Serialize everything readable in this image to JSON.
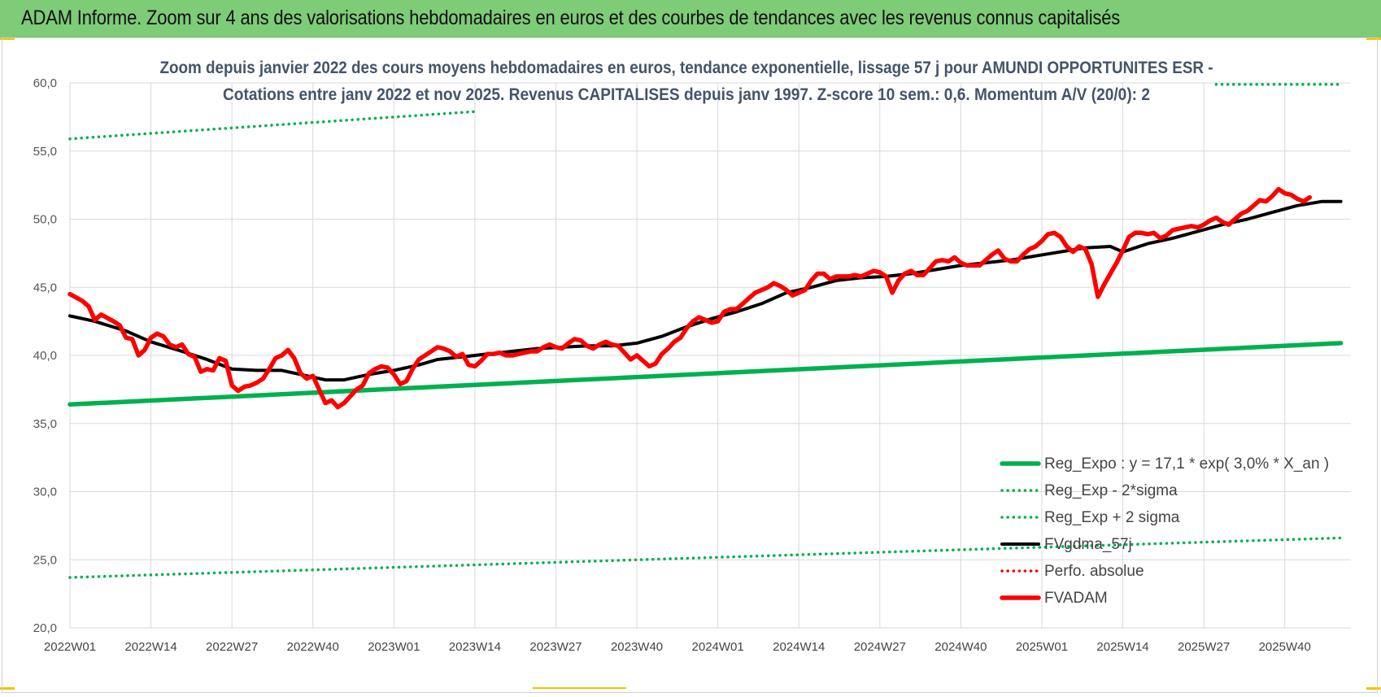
{
  "header": {
    "title": "ADAM Informe. Zoom sur 4 ans des valorisations hebdomadaires en euros et des courbes de tendances avec les revenus connus capitalisés"
  },
  "colors": {
    "header_bg": "#7ecb78",
    "trend": "#00b050",
    "price": "#ff0000",
    "smoothing": "#000000",
    "grid": "#d9d9d9",
    "title_text": "#44546a"
  },
  "chart_data": {
    "type": "line",
    "title_lines": [
      "Zoom depuis janvier 2022 des cours moyens hebdomadaires en euros, tendance exponentielle, lissage 57 j pour AMUNDI OPPORTUNITES ESR -",
      "Cotations entre janv 2022 et nov 2025. Revenus CAPITALISES depuis janv 1997. Z-score 10 sem.: 0,6. Momentum A/V (20/0): 2"
    ],
    "ylim": [
      20,
      60
    ],
    "y_ticks": [
      "20,0",
      "25,0",
      "30,0",
      "35,0",
      "40,0",
      "45,0",
      "50,0",
      "55,0",
      "60,0"
    ],
    "x_ticks": [
      "2022W01",
      "2022W14",
      "2022W27",
      "2022W40",
      "2023W01",
      "2023W14",
      "2023W27",
      "2023W40",
      "2024W01",
      "2024W14",
      "2024W27",
      "2024W40",
      "2025W01",
      "2025W14",
      "2025W27",
      "2025W40"
    ],
    "x_unit_weeks_per_tick": 13,
    "series": [
      {
        "name": "Reg_Expo : y = 17,1 * exp( 3,0% *  X_an )",
        "style": "solid-thick",
        "color": "#00b050",
        "points": [
          [
            0,
            36.4
          ],
          [
            204,
            40.9
          ]
        ]
      },
      {
        "name": "Reg_Exp - 2*sigma",
        "style": "dotted",
        "color": "#00b050",
        "points": [
          [
            0,
            23.7
          ],
          [
            204,
            26.6
          ]
        ]
      },
      {
        "name": "Reg_Exp + 2 sigma",
        "style": "dotted",
        "color": "#00b050",
        "points": [
          [
            0,
            55.9
          ],
          [
            65,
            57.9
          ]
        ],
        "points_2": [
          [
            184,
            59.9
          ],
          [
            204,
            59.9
          ]
        ]
      },
      {
        "name": "FVgdma_57j",
        "style": "solid",
        "color": "#000000",
        "points": [
          [
            0,
            42.9
          ],
          [
            4,
            42.5
          ],
          [
            9,
            41.8
          ],
          [
            13,
            41.0
          ],
          [
            18,
            40.3
          ],
          [
            22,
            39.7
          ],
          [
            26,
            39.0
          ],
          [
            30,
            38.9
          ],
          [
            34,
            38.9
          ],
          [
            38,
            38.5
          ],
          [
            41,
            38.2
          ],
          [
            44,
            38.2
          ],
          [
            48,
            38.6
          ],
          [
            52,
            38.9
          ],
          [
            56,
            39.3
          ],
          [
            59,
            39.7
          ],
          [
            63,
            39.9
          ],
          [
            67,
            40.1
          ],
          [
            71,
            40.3
          ],
          [
            75,
            40.5
          ],
          [
            79,
            40.6
          ],
          [
            83,
            40.7
          ],
          [
            87,
            40.7
          ],
          [
            91,
            40.9
          ],
          [
            95,
            41.4
          ],
          [
            99,
            42.1
          ],
          [
            103,
            42.7
          ],
          [
            107,
            43.2
          ],
          [
            111,
            43.8
          ],
          [
            115,
            44.6
          ],
          [
            119,
            45.0
          ],
          [
            123,
            45.5
          ],
          [
            127,
            45.7
          ],
          [
            131,
            45.8
          ],
          [
            135,
            46.0
          ],
          [
            139,
            46.3
          ],
          [
            143,
            46.6
          ],
          [
            147,
            46.8
          ],
          [
            151,
            47.0
          ],
          [
            155,
            47.3
          ],
          [
            159,
            47.6
          ],
          [
            163,
            47.9
          ],
          [
            167,
            48.0
          ],
          [
            169,
            47.6
          ],
          [
            173,
            48.2
          ],
          [
            177,
            48.6
          ],
          [
            181,
            49.1
          ],
          [
            185,
            49.6
          ],
          [
            189,
            50.0
          ],
          [
            193,
            50.5
          ],
          [
            197,
            51.0
          ],
          [
            201,
            51.3
          ],
          [
            204,
            51.3
          ]
        ]
      },
      {
        "name": "Perfo. absolue",
        "style": "dotted",
        "color": "#ff0000",
        "points": []
      },
      {
        "name": "FVADAM",
        "style": "solid-thick",
        "color": "#ff0000",
        "points": [
          [
            0,
            44.5
          ],
          [
            2,
            44.0
          ],
          [
            3,
            43.6
          ],
          [
            4,
            42.6
          ],
          [
            5,
            43.0
          ],
          [
            7,
            42.5
          ],
          [
            8,
            42.2
          ],
          [
            9,
            41.3
          ],
          [
            10,
            41.2
          ],
          [
            11,
            40.0
          ],
          [
            12,
            40.4
          ],
          [
            13,
            41.3
          ],
          [
            14,
            41.6
          ],
          [
            15,
            41.4
          ],
          [
            16,
            40.8
          ],
          [
            17,
            40.6
          ],
          [
            18,
            40.8
          ],
          [
            19,
            40.1
          ],
          [
            20,
            39.9
          ],
          [
            21,
            38.8
          ],
          [
            22,
            39.0
          ],
          [
            23,
            38.9
          ],
          [
            24,
            39.8
          ],
          [
            25,
            39.6
          ],
          [
            26,
            37.8
          ],
          [
            27,
            37.4
          ],
          [
            28,
            37.7
          ],
          [
            29,
            37.8
          ],
          [
            30,
            38.0
          ],
          [
            31,
            38.3
          ],
          [
            32,
            39.0
          ],
          [
            33,
            39.8
          ],
          [
            34,
            40.0
          ],
          [
            35,
            40.4
          ],
          [
            36,
            39.8
          ],
          [
            37,
            38.7
          ],
          [
            38,
            38.3
          ],
          [
            39,
            38.5
          ],
          [
            40,
            37.5
          ],
          [
            41,
            36.5
          ],
          [
            42,
            36.7
          ],
          [
            43,
            36.2
          ],
          [
            44,
            36.5
          ],
          [
            45,
            37.0
          ],
          [
            46,
            37.5
          ],
          [
            47,
            37.8
          ],
          [
            48,
            38.7
          ],
          [
            49,
            39.0
          ],
          [
            50,
            39.2
          ],
          [
            51,
            39.1
          ],
          [
            52,
            38.6
          ],
          [
            53,
            37.9
          ],
          [
            54,
            38.1
          ],
          [
            55,
            39.0
          ],
          [
            56,
            39.7
          ],
          [
            57,
            40.0
          ],
          [
            58,
            40.3
          ],
          [
            59,
            40.6
          ],
          [
            60,
            40.5
          ],
          [
            61,
            40.3
          ],
          [
            62,
            39.9
          ],
          [
            63,
            40.1
          ],
          [
            64,
            39.3
          ],
          [
            65,
            39.2
          ],
          [
            66,
            39.6
          ],
          [
            67,
            40.1
          ],
          [
            68,
            40.1
          ],
          [
            69,
            40.2
          ],
          [
            70,
            40.0
          ],
          [
            71,
            40.0
          ],
          [
            72,
            40.1
          ],
          [
            73,
            40.2
          ],
          [
            74,
            40.3
          ],
          [
            75,
            40.3
          ],
          [
            76,
            40.6
          ],
          [
            77,
            40.8
          ],
          [
            78,
            40.6
          ],
          [
            79,
            40.5
          ],
          [
            80,
            40.9
          ],
          [
            81,
            41.2
          ],
          [
            82,
            41.1
          ],
          [
            83,
            40.7
          ],
          [
            84,
            40.5
          ],
          [
            85,
            40.8
          ],
          [
            86,
            41.0
          ],
          [
            87,
            40.8
          ],
          [
            88,
            40.7
          ],
          [
            89,
            40.2
          ],
          [
            90,
            39.7
          ],
          [
            91,
            40.0
          ],
          [
            92,
            39.6
          ],
          [
            93,
            39.2
          ],
          [
            94,
            39.4
          ],
          [
            95,
            40.1
          ],
          [
            96,
            40.5
          ],
          [
            97,
            41.0
          ],
          [
            98,
            41.3
          ],
          [
            99,
            42.0
          ],
          [
            100,
            42.5
          ],
          [
            101,
            42.8
          ],
          [
            102,
            42.6
          ],
          [
            103,
            42.4
          ],
          [
            104,
            42.5
          ],
          [
            105,
            43.2
          ],
          [
            106,
            43.4
          ],
          [
            107,
            43.4
          ],
          [
            108,
            43.8
          ],
          [
            109,
            44.2
          ],
          [
            110,
            44.6
          ],
          [
            111,
            44.8
          ],
          [
            112,
            45.0
          ],
          [
            113,
            45.3
          ],
          [
            114,
            45.1
          ],
          [
            115,
            44.8
          ],
          [
            116,
            44.4
          ],
          [
            117,
            44.6
          ],
          [
            118,
            44.8
          ],
          [
            119,
            45.5
          ],
          [
            120,
            46.0
          ],
          [
            121,
            46.0
          ],
          [
            122,
            45.6
          ],
          [
            123,
            45.8
          ],
          [
            124,
            45.8
          ],
          [
            125,
            45.8
          ],
          [
            126,
            45.9
          ],
          [
            127,
            45.8
          ],
          [
            128,
            46.0
          ],
          [
            129,
            46.2
          ],
          [
            130,
            46.1
          ],
          [
            131,
            45.8
          ],
          [
            132,
            44.6
          ],
          [
            133,
            45.5
          ],
          [
            134,
            46.0
          ],
          [
            135,
            46.2
          ],
          [
            136,
            45.9
          ],
          [
            137,
            45.9
          ],
          [
            138,
            46.4
          ],
          [
            139,
            46.9
          ],
          [
            140,
            47.0
          ],
          [
            141,
            46.9
          ],
          [
            142,
            47.2
          ],
          [
            143,
            46.8
          ],
          [
            144,
            46.6
          ],
          [
            145,
            46.6
          ],
          [
            146,
            46.6
          ],
          [
            147,
            47.0
          ],
          [
            148,
            47.4
          ],
          [
            149,
            47.7
          ],
          [
            150,
            47.1
          ],
          [
            151,
            46.9
          ],
          [
            152,
            46.9
          ],
          [
            153,
            47.4
          ],
          [
            154,
            47.8
          ],
          [
            155,
            48.0
          ],
          [
            156,
            48.4
          ],
          [
            157,
            48.9
          ],
          [
            158,
            49.0
          ],
          [
            159,
            48.7
          ],
          [
            160,
            48.0
          ],
          [
            161,
            47.6
          ],
          [
            162,
            48.0
          ],
          [
            163,
            47.8
          ],
          [
            164,
            46.7
          ],
          [
            165,
            44.3
          ],
          [
            166,
            45.2
          ],
          [
            167,
            46.0
          ],
          [
            168,
            46.8
          ],
          [
            169,
            47.7
          ],
          [
            170,
            48.7
          ],
          [
            171,
            49.0
          ],
          [
            172,
            49.0
          ],
          [
            173,
            48.9
          ],
          [
            174,
            49.0
          ],
          [
            175,
            48.6
          ],
          [
            176,
            48.8
          ],
          [
            177,
            49.2
          ],
          [
            178,
            49.3
          ],
          [
            179,
            49.4
          ],
          [
            180,
            49.5
          ],
          [
            181,
            49.4
          ],
          [
            182,
            49.6
          ],
          [
            183,
            49.9
          ],
          [
            184,
            50.1
          ],
          [
            185,
            49.8
          ],
          [
            186,
            49.6
          ],
          [
            187,
            50.0
          ],
          [
            188,
            50.4
          ],
          [
            189,
            50.6
          ],
          [
            190,
            51.0
          ],
          [
            191,
            51.4
          ],
          [
            192,
            51.3
          ],
          [
            193,
            51.7
          ],
          [
            194,
            52.2
          ],
          [
            195,
            51.9
          ],
          [
            196,
            51.8
          ],
          [
            197,
            51.5
          ],
          [
            198,
            51.3
          ],
          [
            199,
            51.6
          ]
        ]
      }
    ],
    "legend": {
      "position": "bottom-right"
    }
  }
}
